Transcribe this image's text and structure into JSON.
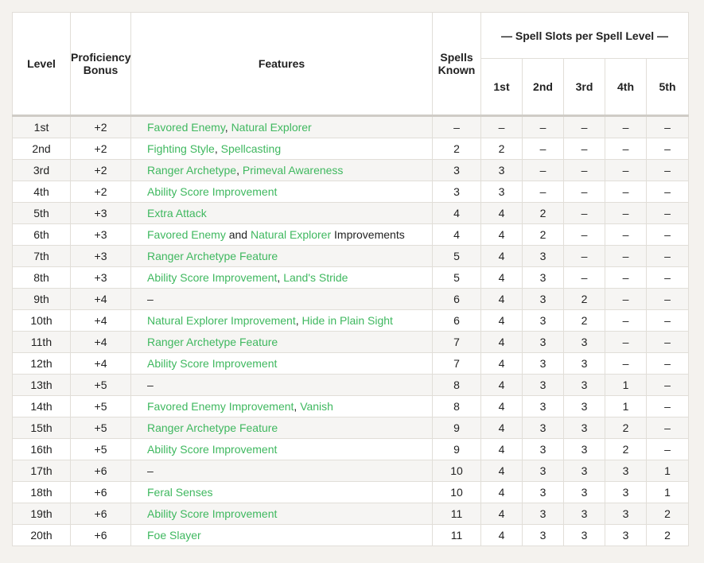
{
  "header": {
    "level": "Level",
    "proficiency_bonus": "Proficiency Bonus",
    "features": "Features",
    "spells_known": "Spells Known",
    "spell_slots_group": "— Spell Slots per Spell Level —",
    "slot_levels": [
      "1st",
      "2nd",
      "3rd",
      "4th",
      "5th"
    ]
  },
  "rows": [
    {
      "level": "1st",
      "bonus": "+2",
      "features": [
        {
          "text": "Favored Enemy",
          "link": true
        },
        {
          "text": ", ",
          "link": false
        },
        {
          "text": "Natural Explorer",
          "link": true
        }
      ],
      "known": "–",
      "slots": [
        "–",
        "–",
        "–",
        "–",
        "–"
      ]
    },
    {
      "level": "2nd",
      "bonus": "+2",
      "features": [
        {
          "text": "Fighting Style",
          "link": true
        },
        {
          "text": ", ",
          "link": false
        },
        {
          "text": "Spellcasting",
          "link": true
        }
      ],
      "known": "2",
      "slots": [
        "2",
        "–",
        "–",
        "–",
        "–"
      ]
    },
    {
      "level": "3rd",
      "bonus": "+2",
      "features": [
        {
          "text": "Ranger Archetype",
          "link": true
        },
        {
          "text": ", ",
          "link": false
        },
        {
          "text": "Primeval Awareness",
          "link": true
        }
      ],
      "known": "3",
      "slots": [
        "3",
        "–",
        "–",
        "–",
        "–"
      ]
    },
    {
      "level": "4th",
      "bonus": "+2",
      "features": [
        {
          "text": "Ability Score Improvement",
          "link": true
        }
      ],
      "known": "3",
      "slots": [
        "3",
        "–",
        "–",
        "–",
        "–"
      ]
    },
    {
      "level": "5th",
      "bonus": "+3",
      "features": [
        {
          "text": "Extra Attack",
          "link": true
        }
      ],
      "known": "4",
      "slots": [
        "4",
        "2",
        "–",
        "–",
        "–"
      ]
    },
    {
      "level": "6th",
      "bonus": "+3",
      "features": [
        {
          "text": "Favored Enemy",
          "link": true
        },
        {
          "text": " and ",
          "link": false
        },
        {
          "text": "Natural Explorer",
          "link": true
        },
        {
          "text": " Improvements",
          "link": false
        }
      ],
      "known": "4",
      "slots": [
        "4",
        "2",
        "–",
        "–",
        "–"
      ]
    },
    {
      "level": "7th",
      "bonus": "+3",
      "features": [
        {
          "text": "Ranger Archetype Feature",
          "link": true
        }
      ],
      "known": "5",
      "slots": [
        "4",
        "3",
        "–",
        "–",
        "–"
      ]
    },
    {
      "level": "8th",
      "bonus": "+3",
      "features": [
        {
          "text": "Ability Score Improvement",
          "link": true
        },
        {
          "text": ", ",
          "link": false
        },
        {
          "text": "Land's Stride",
          "link": true
        }
      ],
      "known": "5",
      "slots": [
        "4",
        "3",
        "–",
        "–",
        "–"
      ]
    },
    {
      "level": "9th",
      "bonus": "+4",
      "features": [
        {
          "text": "–",
          "link": false
        }
      ],
      "known": "6",
      "slots": [
        "4",
        "3",
        "2",
        "–",
        "–"
      ]
    },
    {
      "level": "10th",
      "bonus": "+4",
      "features": [
        {
          "text": "Natural Explorer Improvement",
          "link": true
        },
        {
          "text": ", ",
          "link": false
        },
        {
          "text": "Hide in Plain Sight",
          "link": true
        }
      ],
      "known": "6",
      "slots": [
        "4",
        "3",
        "2",
        "–",
        "–"
      ]
    },
    {
      "level": "11th",
      "bonus": "+4",
      "features": [
        {
          "text": "Ranger Archetype Feature",
          "link": true
        }
      ],
      "known": "7",
      "slots": [
        "4",
        "3",
        "3",
        "–",
        "–"
      ]
    },
    {
      "level": "12th",
      "bonus": "+4",
      "features": [
        {
          "text": "Ability Score Improvement",
          "link": true
        }
      ],
      "known": "7",
      "slots": [
        "4",
        "3",
        "3",
        "–",
        "–"
      ]
    },
    {
      "level": "13th",
      "bonus": "+5",
      "features": [
        {
          "text": "–",
          "link": false
        }
      ],
      "known": "8",
      "slots": [
        "4",
        "3",
        "3",
        "1",
        "–"
      ]
    },
    {
      "level": "14th",
      "bonus": "+5",
      "features": [
        {
          "text": "Favored Enemy Improvement",
          "link": true
        },
        {
          "text": ", ",
          "link": false
        },
        {
          "text": "Vanish",
          "link": true
        }
      ],
      "known": "8",
      "slots": [
        "4",
        "3",
        "3",
        "1",
        "–"
      ]
    },
    {
      "level": "15th",
      "bonus": "+5",
      "features": [
        {
          "text": "Ranger Archetype Feature",
          "link": true
        }
      ],
      "known": "9",
      "slots": [
        "4",
        "3",
        "3",
        "2",
        "–"
      ]
    },
    {
      "level": "16th",
      "bonus": "+5",
      "features": [
        {
          "text": "Ability Score Improvement",
          "link": true
        }
      ],
      "known": "9",
      "slots": [
        "4",
        "3",
        "3",
        "2",
        "–"
      ]
    },
    {
      "level": "17th",
      "bonus": "+6",
      "features": [
        {
          "text": "–",
          "link": false
        }
      ],
      "known": "10",
      "slots": [
        "4",
        "3",
        "3",
        "3",
        "1"
      ]
    },
    {
      "level": "18th",
      "bonus": "+6",
      "features": [
        {
          "text": "Feral Senses",
          "link": true
        }
      ],
      "known": "10",
      "slots": [
        "4",
        "3",
        "3",
        "3",
        "1"
      ]
    },
    {
      "level": "19th",
      "bonus": "+6",
      "features": [
        {
          "text": "Ability Score Improvement",
          "link": true
        }
      ],
      "known": "11",
      "slots": [
        "4",
        "3",
        "3",
        "3",
        "2"
      ]
    },
    {
      "level": "20th",
      "bonus": "+6",
      "features": [
        {
          "text": "Foe Slayer",
          "link": true
        }
      ],
      "known": "11",
      "slots": [
        "4",
        "3",
        "3",
        "3",
        "2"
      ]
    }
  ]
}
